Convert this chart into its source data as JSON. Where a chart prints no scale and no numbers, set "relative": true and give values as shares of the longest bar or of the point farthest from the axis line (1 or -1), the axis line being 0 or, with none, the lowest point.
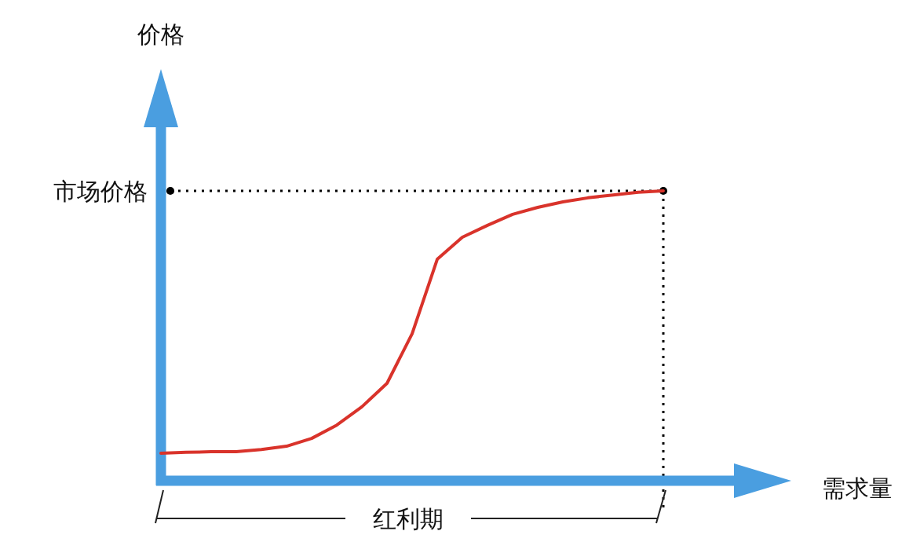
{
  "chart_data": {
    "type": "line",
    "relative": true,
    "categories": [
      null,
      null,
      null,
      null,
      null,
      null,
      null,
      null,
      null,
      null,
      null,
      null,
      null,
      null,
      null,
      null,
      null,
      null,
      null,
      null,
      null
    ],
    "values": [
      0.095,
      0.098,
      0.1,
      0.1,
      0.108,
      0.119,
      0.146,
      0.192,
      0.255,
      0.336,
      0.507,
      0.764,
      0.84,
      0.881,
      0.919,
      0.943,
      0.962,
      0.976,
      0.986,
      0.995,
      1
    ],
    "color": "#d9332b",
    "ref_lines": [
      {
        "axis": "y",
        "value": 1,
        "label": "市场价格",
        "color": "#000000",
        "line_style": "dotted"
      }
    ],
    "annotations": [
      "价格",
      "需求量",
      "红利期"
    ]
  }
}
